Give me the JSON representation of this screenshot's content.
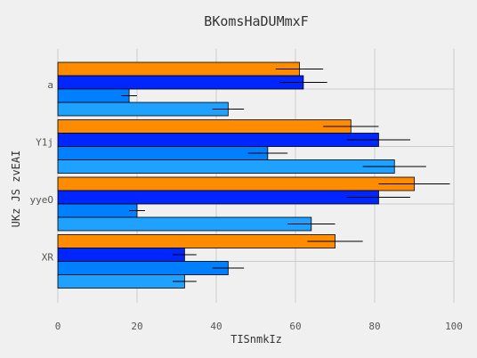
{
  "chart_data": {
    "type": "bar",
    "orientation": "horizontal",
    "title": "BKomsHaDUMmxF",
    "xlabel": "TISnmkIz",
    "ylabel": "UKz JS  zvEAI",
    "categories": [
      "a",
      "Y1j",
      "yyeO",
      "XR"
    ],
    "xlim": [
      0,
      100
    ],
    "xticks": [
      0,
      20,
      40,
      60,
      80,
      100
    ],
    "grid": true,
    "legend": "none",
    "series": [
      {
        "color": "#ff8c00",
        "values": [
          61,
          74,
          90,
          70
        ],
        "errors": [
          6,
          7,
          9,
          7
        ]
      },
      {
        "color": "#0026ff",
        "values": [
          62,
          81,
          81,
          32
        ],
        "errors": [
          6,
          8,
          8,
          3
        ]
      },
      {
        "color": "#0080ff",
        "values": [
          18,
          53,
          20,
          43
        ],
        "errors": [
          2,
          5,
          2,
          4
        ]
      },
      {
        "color": "#1fa1ff",
        "values": [
          43,
          85,
          64,
          32
        ],
        "errors": [
          4,
          8,
          6,
          3
        ]
      }
    ]
  }
}
